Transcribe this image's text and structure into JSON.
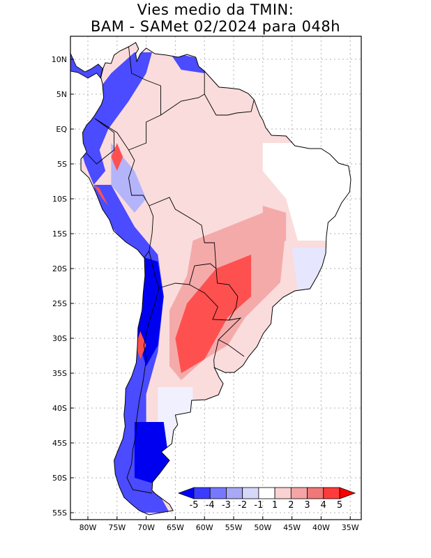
{
  "title": {
    "line1": "Vies medio da TMIN:",
    "line2": "BAM - SAMet 02/2024  para 048h"
  },
  "map": {
    "region": "South America",
    "variable": "TMIN bias",
    "lon_labels": [
      "80W",
      "75W",
      "70W",
      "65W",
      "60W",
      "55W",
      "50W",
      "45W",
      "40W",
      "35W"
    ],
    "lat_labels": [
      "10N",
      "5N",
      "EQ",
      "5S",
      "10S",
      "15S",
      "20S",
      "25S",
      "30S",
      "35S",
      "40S",
      "45S",
      "50S",
      "55S"
    ]
  },
  "colorbar": {
    "labels": [
      "-5",
      "-4",
      "-3",
      "-2",
      "-1",
      "1",
      "2",
      "3",
      "4",
      "5"
    ],
    "colors": [
      "#0000ff",
      "#3c3cff",
      "#7878ff",
      "#a8a8f5",
      "#d7d7fa",
      "#ffffff",
      "#fad2d2",
      "#f5a5a5",
      "#f07878",
      "#ff3c3c",
      "#ff0000"
    ]
  },
  "colors": {
    "strong_cold": "#0000f0",
    "cold": "#4b4bff",
    "mild_cold": "#b4b4fa",
    "neutral": "#ffffff",
    "mild_warm": "#fadcdc",
    "warm": "#f5aaaa",
    "strong_warm": "#ff5050"
  }
}
